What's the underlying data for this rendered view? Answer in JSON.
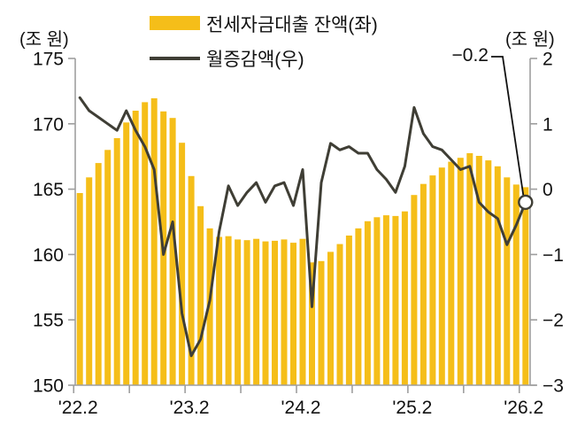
{
  "chart": {
    "left_unit_label": "(조 원)",
    "right_unit_label": "(조 원)",
    "legend": [
      {
        "label": "전세자금대출 잔액(좌)",
        "marker": "bar-swatch"
      },
      {
        "label": "월증감액(우)",
        "marker": "line-swatch"
      }
    ],
    "annotation_text": "−0.2"
  },
  "chart_data": {
    "type": "bar",
    "subtype": "bar+line combo, dual axis",
    "months": [
      "2022-02",
      "2022-03",
      "2022-04",
      "2022-05",
      "2022-06",
      "2022-07",
      "2022-08",
      "2022-09",
      "2022-10",
      "2022-11",
      "2022-12",
      "2023-01",
      "2023-02",
      "2023-03",
      "2023-04",
      "2023-05",
      "2023-06",
      "2023-07",
      "2023-08",
      "2023-09",
      "2023-10",
      "2023-11",
      "2023-12",
      "2024-01",
      "2024-02",
      "2024-03",
      "2024-04",
      "2024-05",
      "2024-06",
      "2024-07",
      "2024-08",
      "2024-09",
      "2024-10",
      "2024-11",
      "2024-12",
      "2025-01",
      "2025-02",
      "2025-03",
      "2025-04",
      "2025-05",
      "2025-06",
      "2025-07",
      "2025-08",
      "2025-09",
      "2025-10",
      "2025-11",
      "2025-12",
      "2026-01",
      "2026-02"
    ],
    "series": [
      {
        "name": "전세자금대출 잔액(좌)",
        "type": "bar",
        "axis": "left",
        "color": "#F5BE19",
        "values": [
          164.7,
          165.9,
          167.0,
          168.0,
          168.9,
          170.1,
          171.0,
          171.65,
          171.95,
          170.95,
          170.45,
          168.55,
          166.0,
          163.7,
          162.0,
          161.35,
          161.4,
          161.15,
          161.1,
          161.2,
          161.0,
          161.05,
          161.15,
          160.9,
          161.2,
          159.4,
          159.5,
          160.2,
          160.8,
          161.45,
          162.0,
          162.55,
          162.85,
          163.0,
          162.95,
          163.3,
          164.55,
          165.4,
          166.05,
          166.65,
          167.1,
          167.4,
          167.75,
          167.55,
          167.2,
          166.75,
          165.9,
          165.35,
          165.15
        ]
      },
      {
        "name": "월증감액(우)",
        "type": "line",
        "axis": "right",
        "color": "#3F3E35",
        "last_point_marker": "open-circle",
        "values": [
          1.4,
          1.2,
          1.1,
          1.0,
          0.9,
          1.2,
          0.9,
          0.65,
          0.3,
          -1.0,
          -0.5,
          -1.9,
          -2.55,
          -2.3,
          -1.7,
          -0.65,
          0.05,
          -0.25,
          -0.05,
          0.1,
          -0.2,
          0.05,
          0.1,
          -0.25,
          0.3,
          -1.8,
          0.1,
          0.7,
          0.6,
          0.65,
          0.55,
          0.55,
          0.3,
          0.15,
          -0.05,
          0.35,
          1.25,
          0.85,
          0.65,
          0.6,
          0.45,
          0.3,
          0.35,
          -0.2,
          -0.35,
          -0.45,
          -0.85,
          -0.55,
          -0.2
        ]
      }
    ],
    "left_axis": {
      "label": "(조 원)",
      "range": [
        150,
        175
      ],
      "tick_values": [
        175,
        170,
        165,
        160,
        155,
        150
      ],
      "tick_labels": [
        "175",
        "170",
        "165",
        "160",
        "155",
        "150"
      ]
    },
    "right_axis": {
      "label": "(조 원)",
      "range": [
        -3,
        2
      ],
      "tick_values": [
        2,
        1,
        0,
        -1,
        -2,
        -3
      ],
      "tick_labels": [
        "2",
        "1",
        "0",
        "−1",
        "−2",
        "−3"
      ]
    },
    "x_axis": {
      "ticks": [
        {
          "index": 0,
          "label": "'22.2"
        },
        {
          "index": 6,
          "label": ""
        },
        {
          "index": 12,
          "label": "'23.2"
        },
        {
          "index": 18,
          "label": ""
        },
        {
          "index": 24,
          "label": "'24.2"
        },
        {
          "index": 30,
          "label": ""
        },
        {
          "index": 36,
          "label": "'25.2"
        },
        {
          "index": 42,
          "label": ""
        },
        {
          "index": 48,
          "label": "'26.2"
        }
      ]
    },
    "annotation": {
      "text": "−0.2",
      "series": "월증감액(우)",
      "month": "2026-02",
      "value": -0.2
    },
    "grid": false,
    "legend_position": "top-center"
  }
}
